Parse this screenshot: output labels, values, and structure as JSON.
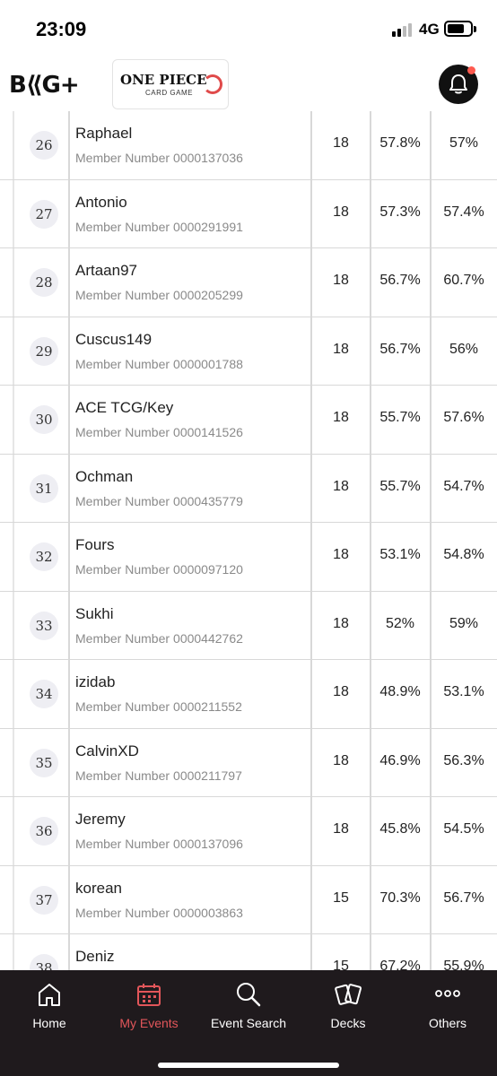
{
  "status_bar": {
    "time": "23:09",
    "network": "4G",
    "icons": [
      "signal-icon",
      "battery-icon"
    ]
  },
  "header": {
    "brand_logo": "B⟪G+",
    "game_logo_title": "ONE PIECE",
    "game_logo_subtitle": "CARD GAME",
    "notification_icon": "bell-icon",
    "notification_dot_color": "#ff5a4f"
  },
  "table": {
    "member_label": "Member Number",
    "rows": [
      {
        "rank": "26",
        "name": "Raphael",
        "member_number": "0000137036",
        "points": "18",
        "omw": "57.8%",
        "gw": "57%"
      },
      {
        "rank": "27",
        "name": "Antonio",
        "member_number": "0000291991",
        "points": "18",
        "omw": "57.3%",
        "gw": "57.4%"
      },
      {
        "rank": "28",
        "name": "Artaan97",
        "member_number": "0000205299",
        "points": "18",
        "omw": "56.7%",
        "gw": "60.7%"
      },
      {
        "rank": "29",
        "name": "Cuscus149",
        "member_number": "0000001788",
        "points": "18",
        "omw": "56.7%",
        "gw": "56%"
      },
      {
        "rank": "30",
        "name": "ACE TCG/Key",
        "member_number": "0000141526",
        "points": "18",
        "omw": "55.7%",
        "gw": "57.6%"
      },
      {
        "rank": "31",
        "name": "Ochman",
        "member_number": "0000435779",
        "points": "18",
        "omw": "55.7%",
        "gw": "54.7%"
      },
      {
        "rank": "32",
        "name": "Fours",
        "member_number": "0000097120",
        "points": "18",
        "omw": "53.1%",
        "gw": "54.8%"
      },
      {
        "rank": "33",
        "name": "Sukhi",
        "member_number": "0000442762",
        "points": "18",
        "omw": "52%",
        "gw": "59%"
      },
      {
        "rank": "34",
        "name": "izidab",
        "member_number": "0000211552",
        "points": "18",
        "omw": "48.9%",
        "gw": "53.1%"
      },
      {
        "rank": "35",
        "name": "CalvinXD",
        "member_number": "0000211797",
        "points": "18",
        "omw": "46.9%",
        "gw": "56.3%"
      },
      {
        "rank": "36",
        "name": "Jeremy",
        "member_number": "0000137096",
        "points": "18",
        "omw": "45.8%",
        "gw": "54.5%"
      },
      {
        "rank": "37",
        "name": "korean",
        "member_number": "0000003863",
        "points": "15",
        "omw": "70.3%",
        "gw": "56.7%"
      },
      {
        "rank": "38",
        "name": "Deniz",
        "member_number": "",
        "points": "15",
        "omw": "67.2%",
        "gw": "55.9%"
      }
    ]
  },
  "bottom_nav": {
    "active_color": "#e2565a",
    "items": [
      {
        "label": "Home",
        "icon": "home-icon"
      },
      {
        "label": "My Events",
        "icon": "calendar-icon"
      },
      {
        "label": "Event Search",
        "icon": "search-icon"
      },
      {
        "label": "Decks",
        "icon": "cards-icon"
      },
      {
        "label": "Others",
        "icon": "more-icon"
      }
    ]
  }
}
